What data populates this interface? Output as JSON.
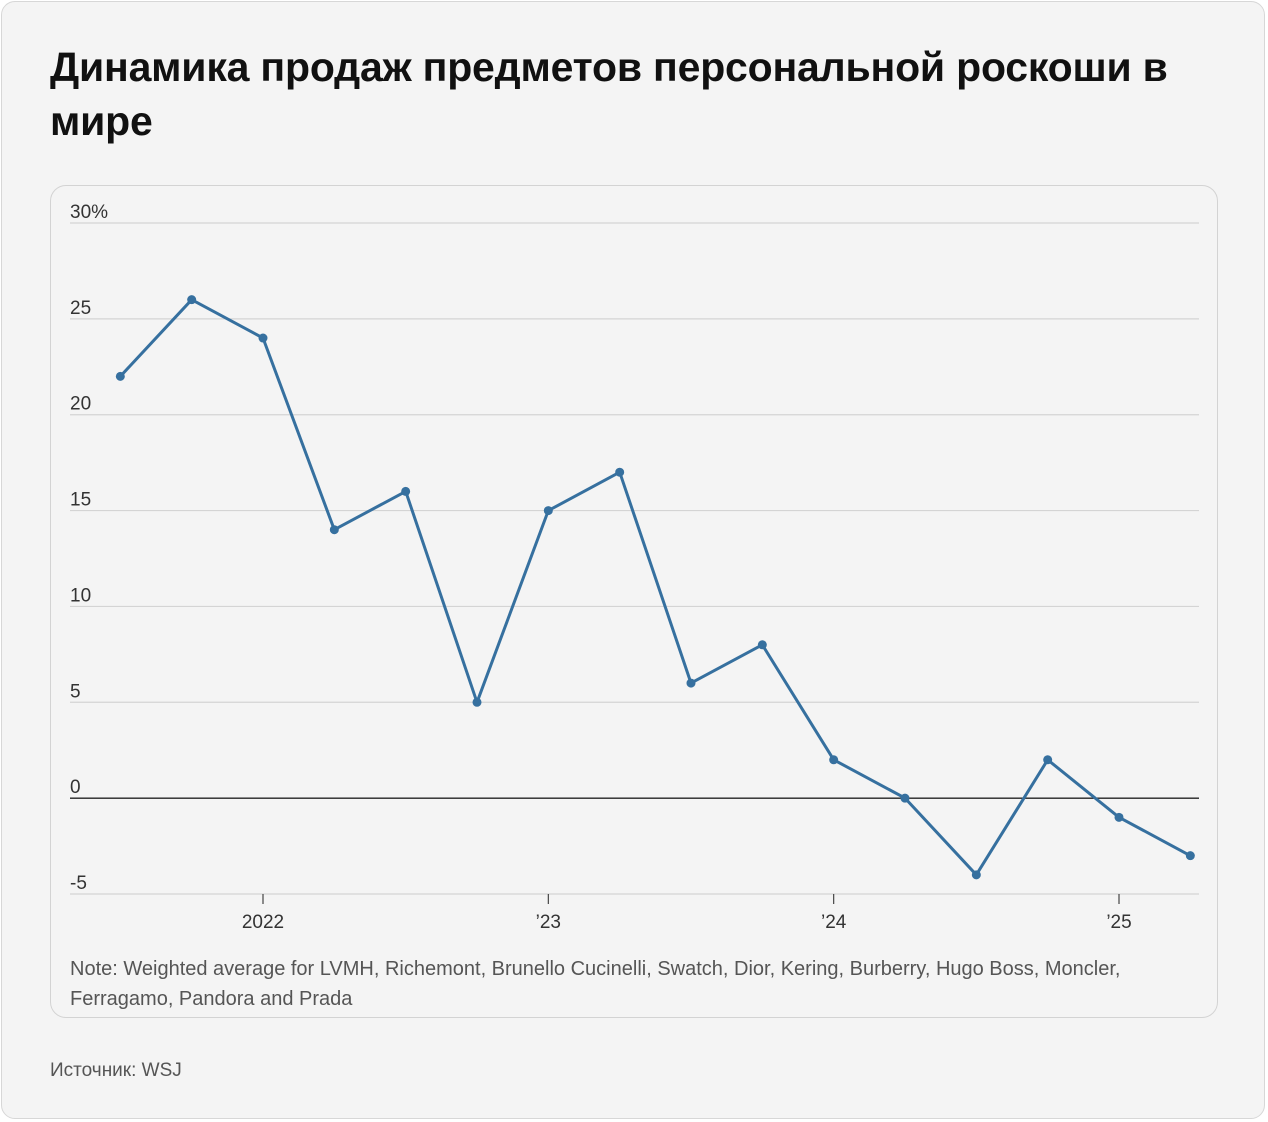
{
  "title": "Динамика продаж предметов персональной роскоши в мире",
  "source": "Источник:  WSJ",
  "chart_data": {
    "type": "line",
    "y_tick_labels": [
      "30%",
      "25",
      "20",
      "15",
      "10",
      "5",
      "0",
      "-5"
    ],
    "y_ticks": [
      30,
      25,
      20,
      15,
      10,
      5,
      0,
      -5
    ],
    "ylim": [
      -5,
      30
    ],
    "x_tick_labels": [
      "2022",
      "’23",
      "’24",
      "’25"
    ],
    "x_ticks": [
      2022.0,
      2023.0,
      2024.0,
      2025.0
    ],
    "grid": true,
    "line_color": "#36709f",
    "series": [
      {
        "x": [
          2021.5,
          2021.75,
          2022.0,
          2022.25,
          2022.5,
          2022.75,
          2023.0,
          2023.25,
          2023.5,
          2023.75,
          2024.0,
          2024.25,
          2024.5,
          2024.75,
          2025.0,
          2025.25
        ],
        "values": [
          22,
          26,
          24,
          14,
          16,
          5,
          15,
          17,
          6,
          8,
          2,
          0,
          -4,
          2,
          -1,
          -3
        ]
      }
    ],
    "note": "Note: Weighted average for LVMH, Richemont, Brunello Cucinelli, Swatch, Dior, Kering, Burberry, Hugo Boss, Moncler, Ferragamo, Pandora and Prada"
  }
}
